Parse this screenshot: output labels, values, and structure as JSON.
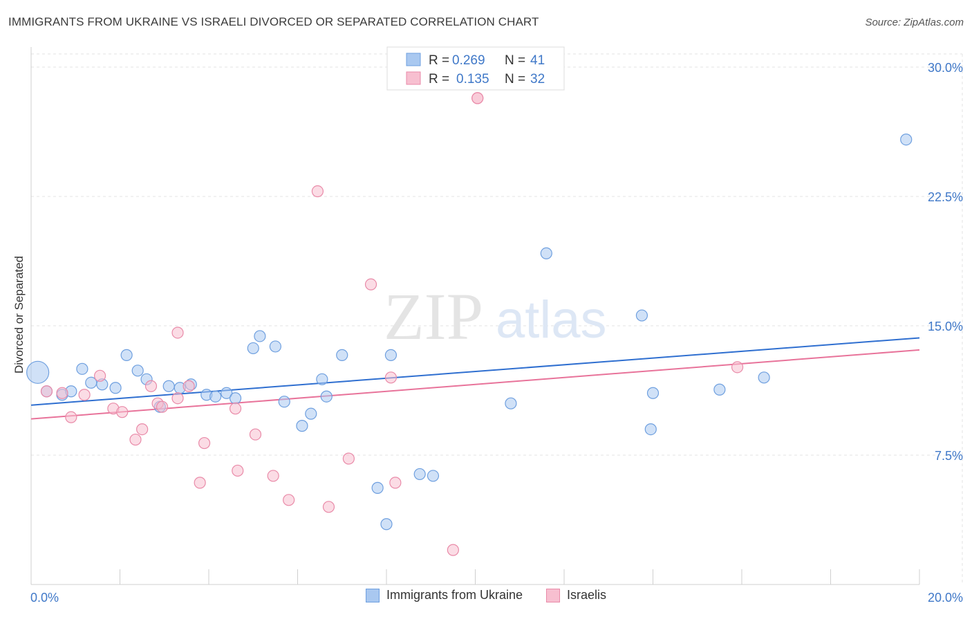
{
  "title": "IMMIGRANTS FROM UKRAINE VS ISRAELI DIVORCED OR SEPARATED CORRELATION CHART",
  "source": "Source: ZipAtlas.com",
  "watermark": {
    "zip": "ZIP",
    "atlas": "atlas"
  },
  "chart_data": {
    "type": "scatter",
    "xlabel": "",
    "ylabel": "Divorced or Separated",
    "xlim": [
      0,
      20
    ],
    "ylim": [
      0,
      30
    ],
    "x_tick_labels": [
      "0.0%",
      "20.0%"
    ],
    "y_ticks": [
      7.5,
      15.0,
      22.5,
      30.0
    ],
    "y_tick_labels": [
      "7.5%",
      "15.0%",
      "22.5%",
      "30.0%"
    ],
    "grid": true,
    "legend": [
      {
        "r_label": "R =",
        "r_value": "0.269",
        "n_label": "N =",
        "n_value": "41",
        "color": "#a9c8f0",
        "edge": "#6e9fdf"
      },
      {
        "r_label": "R =",
        "r_value": "0.135",
        "n_label": "N =",
        "n_value": "32",
        "color": "#f7bfd0",
        "edge": "#e98aa8"
      }
    ],
    "series": [
      {
        "name": "Immigrants from Ukraine",
        "color": "#a9c8f0",
        "edge": "#6e9fdf",
        "line_color": "#2f6fd0",
        "trend": [
          [
            0,
            10.4
          ],
          [
            20,
            14.3
          ]
        ],
        "points": [
          [
            0.15,
            12.3
          ],
          [
            0.35,
            11.2
          ],
          [
            0.7,
            11.0
          ],
          [
            0.9,
            11.2
          ],
          [
            1.15,
            12.5
          ],
          [
            1.35,
            11.7
          ],
          [
            1.6,
            11.6
          ],
          [
            1.9,
            11.4
          ],
          [
            2.15,
            13.3
          ],
          [
            2.4,
            12.4
          ],
          [
            2.6,
            11.9
          ],
          [
            2.9,
            10.3
          ],
          [
            3.1,
            11.5
          ],
          [
            3.35,
            11.4
          ],
          [
            3.6,
            11.6
          ],
          [
            3.95,
            11.0
          ],
          [
            4.15,
            10.9
          ],
          [
            4.4,
            11.1
          ],
          [
            4.6,
            10.8
          ],
          [
            5.0,
            13.7
          ],
          [
            5.15,
            14.4
          ],
          [
            5.5,
            13.8
          ],
          [
            5.7,
            10.6
          ],
          [
            6.1,
            9.2
          ],
          [
            6.3,
            9.9
          ],
          [
            6.55,
            11.9
          ],
          [
            6.65,
            10.9
          ],
          [
            7.0,
            13.3
          ],
          [
            7.8,
            5.6
          ],
          [
            8.1,
            13.3
          ],
          [
            8.0,
            3.5
          ],
          [
            8.75,
            6.4
          ],
          [
            9.05,
            6.3
          ],
          [
            10.8,
            10.5
          ],
          [
            11.6,
            19.2
          ],
          [
            13.75,
            15.6
          ],
          [
            14.0,
            11.1
          ],
          [
            13.95,
            9.0
          ],
          [
            15.5,
            11.3
          ],
          [
            16.5,
            12.0
          ],
          [
            19.7,
            25.8
          ]
        ]
      },
      {
        "name": "Israelis",
        "color": "#f7bfd0",
        "edge": "#e98aa8",
        "line_color": "#e8739a",
        "trend": [
          [
            0,
            9.6
          ],
          [
            20,
            13.6
          ]
        ],
        "points": [
          [
            0.35,
            11.2
          ],
          [
            0.7,
            11.1
          ],
          [
            0.9,
            9.7
          ],
          [
            1.2,
            11.0
          ],
          [
            1.55,
            12.1
          ],
          [
            1.85,
            10.2
          ],
          [
            2.05,
            10.0
          ],
          [
            2.35,
            8.4
          ],
          [
            2.5,
            9.0
          ],
          [
            2.7,
            11.5
          ],
          [
            2.85,
            10.5
          ],
          [
            2.95,
            10.3
          ],
          [
            3.3,
            10.8
          ],
          [
            3.3,
            14.6
          ],
          [
            3.55,
            11.5
          ],
          [
            3.8,
            5.9
          ],
          [
            3.9,
            8.2
          ],
          [
            4.6,
            10.2
          ],
          [
            4.65,
            6.6
          ],
          [
            5.05,
            8.7
          ],
          [
            5.45,
            6.3
          ],
          [
            5.8,
            4.9
          ],
          [
            6.45,
            22.8
          ],
          [
            6.7,
            4.5
          ],
          [
            7.15,
            7.3
          ],
          [
            7.65,
            17.4
          ],
          [
            8.1,
            12.0
          ],
          [
            8.2,
            5.9
          ],
          [
            9.5,
            2.0
          ],
          [
            10.05,
            28.2
          ],
          [
            15.9,
            12.6
          ],
          [
            10.05,
            28.2
          ]
        ]
      }
    ]
  }
}
